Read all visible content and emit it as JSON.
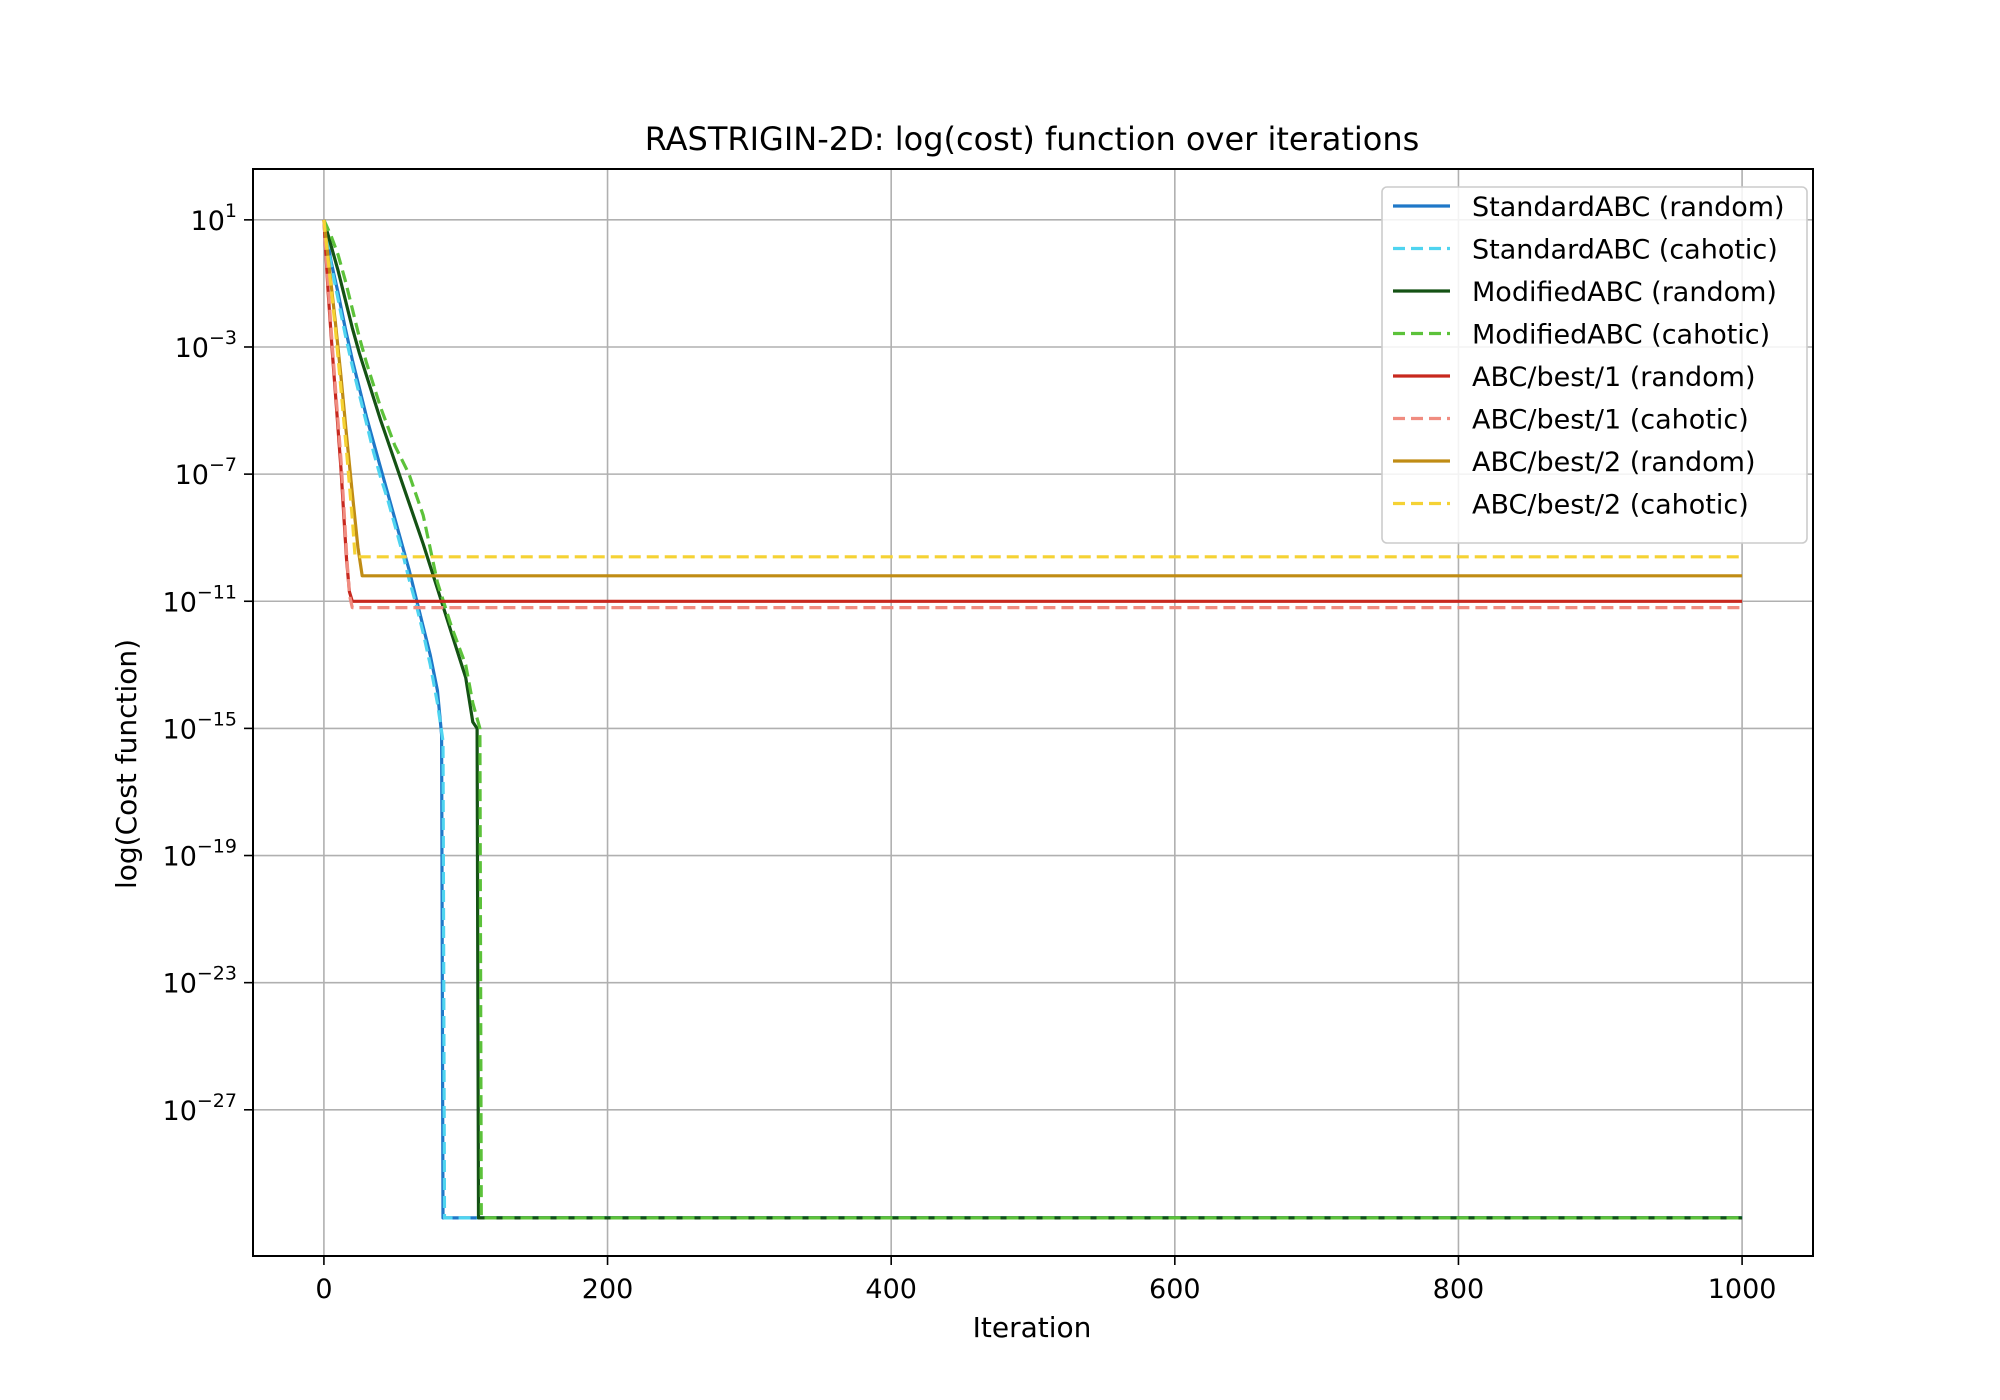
{
  "chart_data": {
    "type": "line",
    "title": "RASTRIGIN-2D: log(cost) function over iterations",
    "xlabel": "Iteration",
    "ylabel": "log(Cost function)",
    "xlim": [
      -50,
      1050
    ],
    "ylim_log10": [
      -31.6,
      2.6
    ],
    "y_scale": "log",
    "grid": true,
    "legend_position": "top-right",
    "x_ticks": [
      0,
      200,
      400,
      600,
      800,
      1000
    ],
    "x_tick_labels": [
      "0",
      "200",
      "400",
      "600",
      "800",
      "1000"
    ],
    "y_ticks_exponent": [
      1,
      -3,
      -7,
      -11,
      -15,
      -19,
      -23,
      -27
    ],
    "y_tick_labels": [
      {
        "base": "10",
        "exp": "1"
      },
      {
        "base": "10",
        "exp": "−3"
      },
      {
        "base": "10",
        "exp": "−7"
      },
      {
        "base": "10",
        "exp": "−11"
      },
      {
        "base": "10",
        "exp": "−15"
      },
      {
        "base": "10",
        "exp": "−19"
      },
      {
        "base": "10",
        "exp": "−23"
      },
      {
        "base": "10",
        "exp": "−27"
      }
    ],
    "series": [
      {
        "name": "StandardABC (random)",
        "color": "#1f78c8",
        "dashed": false,
        "x": [
          0,
          5,
          10,
          15,
          20,
          25,
          30,
          35,
          40,
          45,
          50,
          55,
          60,
          65,
          70,
          75,
          80,
          83,
          84,
          85,
          1000
        ],
        "log10_y": [
          1.0,
          -0.3,
          -1.3,
          -2.4,
          -3.4,
          -4.3,
          -5.2,
          -6.0,
          -6.8,
          -7.6,
          -8.4,
          -9.2,
          -10.0,
          -10.9,
          -11.8,
          -12.7,
          -13.8,
          -15.2,
          -30.4,
          -30.4,
          -30.4
        ]
      },
      {
        "name": "StandardABC (cahotic)",
        "color": "#4fd4f0",
        "dashed": true,
        "x": [
          0,
          5,
          10,
          15,
          20,
          25,
          30,
          35,
          40,
          45,
          50,
          55,
          60,
          65,
          70,
          75,
          80,
          84,
          85,
          1000
        ],
        "log10_y": [
          1.0,
          -0.4,
          -1.5,
          -2.6,
          -3.6,
          -4.5,
          -5.4,
          -6.3,
          -7.1,
          -7.8,
          -8.6,
          -9.4,
          -10.3,
          -11.1,
          -12.0,
          -13.0,
          -14.2,
          -15.4,
          -30.4,
          -30.4
        ]
      },
      {
        "name": "ModifiedABC (random)",
        "color": "#145214",
        "dashed": false,
        "x": [
          0,
          5,
          10,
          15,
          20,
          25,
          30,
          40,
          50,
          60,
          70,
          80,
          90,
          100,
          105,
          108,
          109,
          110,
          1000
        ],
        "log10_y": [
          1.0,
          0.2,
          -0.6,
          -1.5,
          -2.4,
          -3.2,
          -3.9,
          -5.3,
          -6.6,
          -7.9,
          -9.2,
          -10.6,
          -12.0,
          -13.4,
          -14.8,
          -15.0,
          -30.4,
          -30.4,
          -30.4
        ]
      },
      {
        "name": "ModifiedABC (cahotic)",
        "color": "#5cc23a",
        "dashed": true,
        "x": [
          0,
          5,
          10,
          15,
          20,
          25,
          30,
          40,
          50,
          60,
          70,
          80,
          90,
          100,
          105,
          110,
          111,
          112,
          1000
        ],
        "log10_y": [
          1.0,
          0.5,
          -0.1,
          -0.9,
          -1.8,
          -2.7,
          -3.5,
          -4.9,
          -6.1,
          -7.0,
          -8.3,
          -10.4,
          -11.8,
          -13.0,
          -14.2,
          -15.0,
          -30.4,
          -30.4,
          -30.4
        ]
      },
      {
        "name": "ABC/best/1 (random)",
        "color": "#c8281e",
        "dashed": false,
        "x": [
          0,
          3,
          6,
          9,
          12,
          14,
          16,
          18,
          20,
          1000
        ],
        "log10_y": [
          1.0,
          -1.3,
          -3.2,
          -5.0,
          -6.8,
          -8.3,
          -9.7,
          -10.7,
          -11.0,
          -11.0
        ]
      },
      {
        "name": "ABC/best/1 (cahotic)",
        "color": "#f08c80",
        "dashed": true,
        "x": [
          0,
          3,
          6,
          9,
          12,
          14,
          16,
          18,
          20,
          1000
        ],
        "log10_y": [
          1.0,
          -1.1,
          -3.0,
          -4.8,
          -6.5,
          -8.0,
          -9.5,
          -10.8,
          -11.2,
          -11.2
        ]
      },
      {
        "name": "ABC/best/2 (random)",
        "color": "#c08c14",
        "dashed": false,
        "x": [
          0,
          4,
          8,
          12,
          16,
          20,
          24,
          27,
          1000
        ],
        "log10_y": [
          1.0,
          -0.6,
          -2.2,
          -3.9,
          -5.8,
          -7.6,
          -9.3,
          -10.2,
          -10.2
        ]
      },
      {
        "name": "ABC/best/2 (cahotic)",
        "color": "#f5d234",
        "dashed": true,
        "x": [
          0,
          4,
          8,
          12,
          16,
          20,
          22,
          1000
        ],
        "log10_y": [
          1.0,
          -0.7,
          -2.4,
          -4.3,
          -6.3,
          -8.4,
          -9.6,
          -9.6
        ]
      }
    ]
  }
}
